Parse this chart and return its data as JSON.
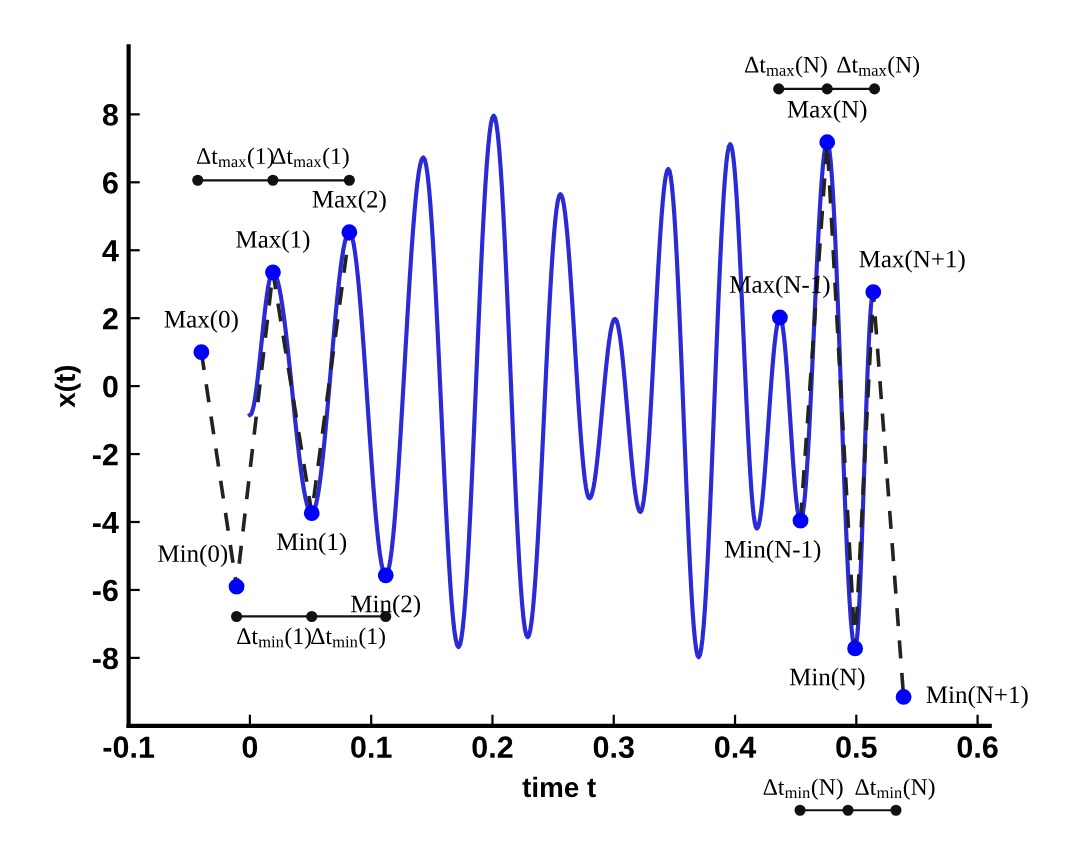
{
  "chart_data": {
    "type": "line",
    "xlabel": "time t",
    "ylabel": "x(t)",
    "xlim": [
      -0.1,
      0.61
    ],
    "ylim": [
      -10,
      10
    ],
    "xticks": [
      -0.1,
      0,
      0.1,
      0.2,
      0.3,
      0.4,
      0.5,
      0.6
    ],
    "yticks": [
      -8,
      -6,
      -4,
      -2,
      0,
      2,
      4,
      6,
      8
    ],
    "grid": false,
    "legend": false,
    "series": [
      {
        "color": "#2b2bd6",
        "line_style": "solid",
        "marker": "none",
        "x": [
          0,
          0.019,
          0.051,
          0.082,
          0.112,
          0.143,
          0.172,
          0.201,
          0.229,
          0.256,
          0.28,
          0.301,
          0.322,
          0.345,
          0.37,
          0.396,
          0.418,
          0.437,
          0.454,
          0.476,
          0.499,
          0.514
        ],
        "values": [
          -0.85,
          3.35,
          -3.74,
          4.53,
          -5.57,
          6.73,
          -7.68,
          7.96,
          -7.39,
          5.65,
          -3.3,
          1.98,
          -3.7,
          6.39,
          -7.98,
          7.12,
          -4.19,
          2.02,
          -3.96,
          7.18,
          -7.72,
          2.77
        ]
      },
      {
        "color": "#222222",
        "line_style": "dashed",
        "marker": "none",
        "x": [
          -0.04,
          -0.011,
          0.019,
          0.051,
          0.082
        ],
        "values": [
          1.0,
          -5.9,
          3.35,
          -3.74,
          4.53
        ]
      },
      {
        "color": "#222222",
        "line_style": "dashed",
        "marker": "none",
        "x": [
          0.454,
          0.476,
          0.499,
          0.514,
          0.539
        ],
        "values": [
          -3.96,
          7.18,
          -7.72,
          2.77,
          -9.15
        ]
      },
      {
        "type": "scatter",
        "color": "#0000ff",
        "marker": "circle",
        "x": [
          -0.04,
          0.019,
          0.082,
          -0.011,
          0.051,
          0.112,
          0.437,
          0.476,
          0.514,
          0.454,
          0.499,
          0.539
        ],
        "values": [
          1.0,
          3.35,
          4.53,
          -5.9,
          -3.74,
          -5.57,
          2.02,
          7.18,
          2.77,
          -3.96,
          -7.72,
          -9.15
        ]
      },
      {
        "color": "#111111",
        "line_style": "solid",
        "marker": "circle",
        "x": [
          -0.043,
          0.019,
          0.082
        ],
        "values": [
          6.06,
          6.06,
          6.06
        ]
      },
      {
        "color": "#111111",
        "line_style": "solid",
        "marker": "circle",
        "x": [
          -0.011,
          0.051,
          0.112
        ],
        "values": [
          -6.78,
          -6.78,
          -6.78
        ]
      },
      {
        "color": "#111111",
        "line_style": "solid",
        "marker": "circle",
        "x": [
          0.436,
          0.476,
          0.515
        ],
        "values": [
          8.75,
          8.75,
          8.75
        ]
      }
    ],
    "annotations": [
      {
        "text": "Max(0)",
        "x": -0.04,
        "y": 1.0
      },
      {
        "text": "Max(1)",
        "x": 0.019,
        "y": 3.35
      },
      {
        "text": "Max(2)",
        "x": 0.082,
        "y": 4.53
      },
      {
        "text": "Min(0)",
        "x": -0.011,
        "y": -5.9
      },
      {
        "text": "Min(1)",
        "x": 0.051,
        "y": -3.74
      },
      {
        "text": "Min(2)",
        "x": 0.112,
        "y": -5.57
      },
      {
        "text": "Max(N-1)",
        "x": 0.437,
        "y": 2.02
      },
      {
        "text": "Max(N)",
        "x": 0.476,
        "y": 7.18
      },
      {
        "text": "Max(N+1)",
        "x": 0.514,
        "y": 2.77
      },
      {
        "text": "Min(N-1)",
        "x": 0.454,
        "y": -3.96
      },
      {
        "text": "Min(N)",
        "x": 0.499,
        "y": -7.72
      },
      {
        "text": "Min(N+1)",
        "x": 0.539,
        "y": -9.15
      },
      {
        "text": "Δt$_{max}$(1)",
        "x": -0.012,
        "y": 6.06
      },
      {
        "text": "Δt$_{max}$(1)",
        "x": 0.05,
        "y": 6.06
      },
      {
        "text": "Δt$_{min}$(1)",
        "x": 0.02,
        "y": -6.78
      },
      {
        "text": "Δt$_{min}$(1)",
        "x": 0.081,
        "y": -6.78
      },
      {
        "text": "Δt$_{max}$(N)",
        "x": 0.456,
        "y": 8.75
      },
      {
        "text": "Δt$_{max}$(N)",
        "x": 0.495,
        "y": 8.75
      },
      "Δt$_{min}$(N)",
      "Δt$_{min}$(N)"
    ]
  }
}
